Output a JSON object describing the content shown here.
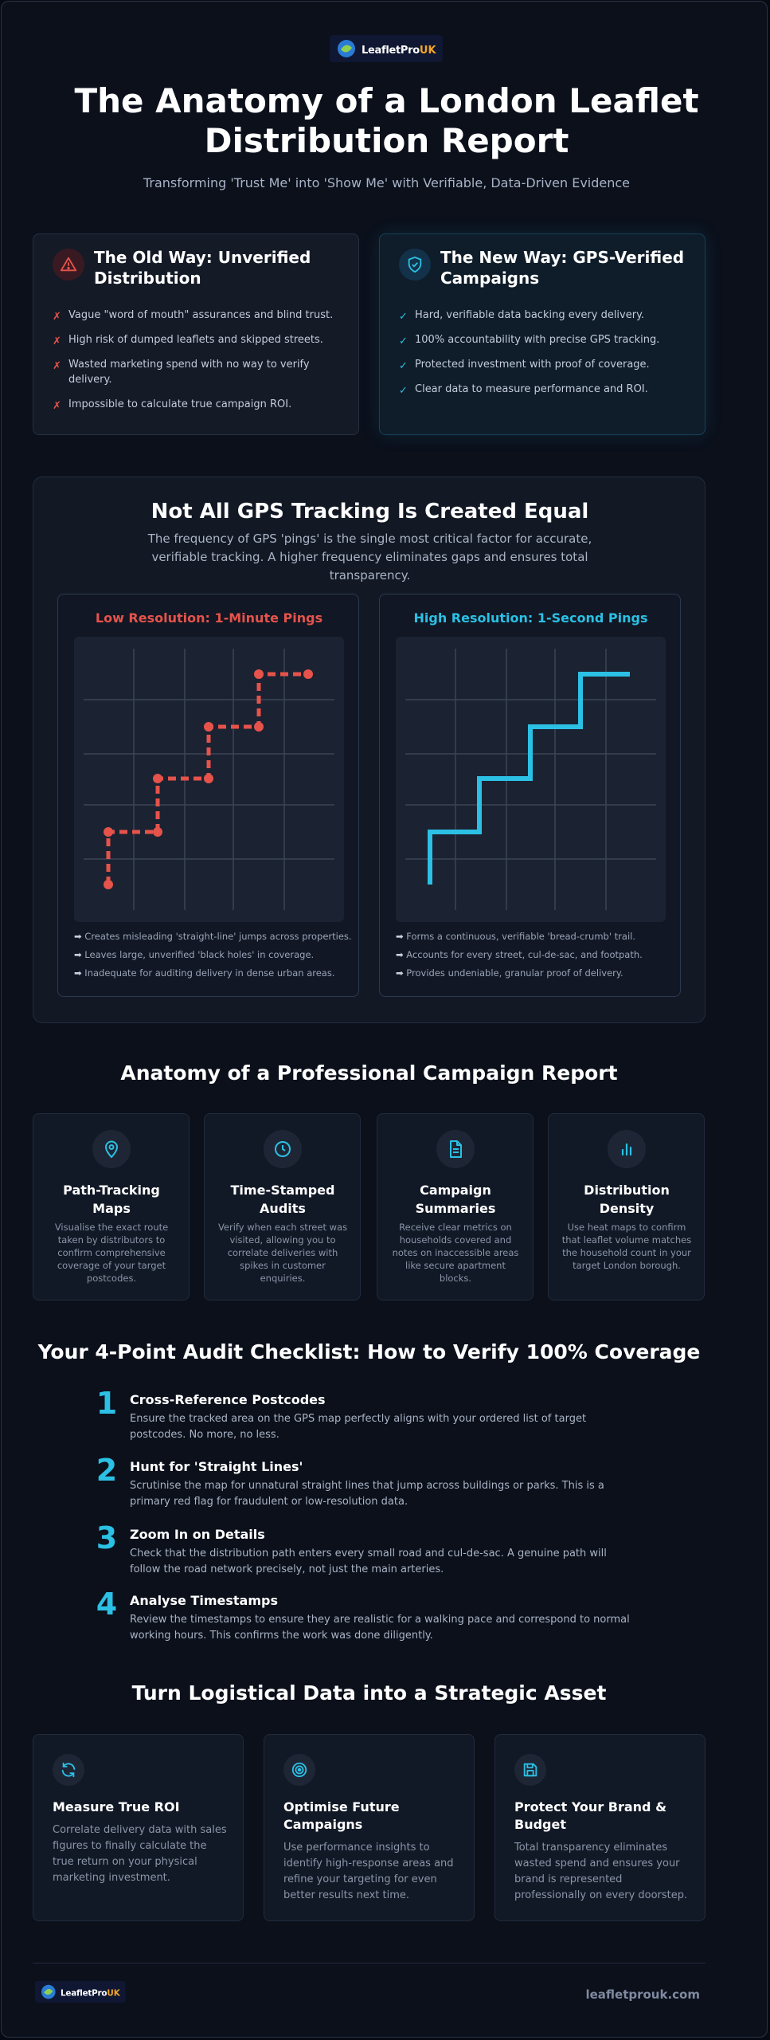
{
  "header": {
    "brand": "LeafletPro",
    "brand_suffix": "UK",
    "title": "The Anatomy of a London Leaflet Distribution Report",
    "subtitle": "Transforming 'Trust Me' into 'Show Me' with Verifiable, Data-Driven Evidence"
  },
  "comparison": {
    "old": {
      "title": "The Old Way: Unverified Distribution",
      "items": [
        "Vague \"word of mouth\" assurances and blind trust.",
        "High risk of dumped leaflets and skipped streets.",
        "Wasted marketing spend with no way to verify delivery.",
        "Impossible to calculate true campaign ROI."
      ]
    },
    "new": {
      "title": "The New Way: GPS-Verified Campaigns",
      "items": [
        "Hard, verifiable data backing every delivery.",
        "100% accountability with precise GPS tracking.",
        "Protected investment with proof of coverage.",
        "Clear data to measure performance and ROI."
      ]
    }
  },
  "gps": {
    "title": "Not All GPS Tracking Is Created Equal",
    "description": "The frequency of GPS 'pings' is the single most critical factor for accurate, verifiable tracking. A higher frequency eliminates gaps and ensures total transparency.",
    "low": {
      "title": "Low Resolution: 1-Minute Pings",
      "bullets": [
        "Creates misleading 'straight-line' jumps across properties.",
        "Leaves large, unverified 'black holes' in coverage.",
        "Inadequate for auditing delivery in dense urban areas."
      ]
    },
    "high": {
      "title": "High Resolution: 1-Second Pings",
      "bullets": [
        "Forms a continuous, verifiable 'bread-crumb' trail.",
        "Accounts for every street, cul-de-sac, and footpath.",
        "Provides undeniable, granular proof of delivery."
      ]
    }
  },
  "anatomy": {
    "title": "Anatomy of a Professional Campaign Report",
    "cards": [
      {
        "title": "Path-Tracking Maps",
        "text": "Visualise the exact route taken by distributors to confirm comprehensive coverage of your target postcodes."
      },
      {
        "title": "Time-Stamped Audits",
        "text": "Verify when each street was visited, allowing you to correlate deliveries with spikes in customer enquiries."
      },
      {
        "title": "Campaign Summaries",
        "text": "Receive clear metrics on households covered and notes on inaccessible areas like secure apartment blocks."
      },
      {
        "title": "Distribution Density",
        "text": "Use heat maps to confirm that leaflet volume matches the household count in your target London borough."
      }
    ]
  },
  "checklist": {
    "title": "Your 4-Point Audit Checklist: How to Verify 100% Coverage",
    "items": [
      {
        "number": 1,
        "title": "Cross-Reference Postcodes",
        "text": "Ensure the tracked area on the GPS map perfectly aligns with your ordered list of target postcodes. No more, no less."
      },
      {
        "number": 2,
        "title": "Hunt for 'Straight Lines'",
        "text": "Scrutinise the map for unnatural straight lines that jump across buildings or parks. This is a primary red flag for fraudulent or low-resolution data."
      },
      {
        "number": 3,
        "title": "Zoom In on Details",
        "text": "Check that the distribution path enters every small road and cul-de-sac. A genuine path will follow the road network precisely, not just the main arteries."
      },
      {
        "number": 4,
        "title": "Analyse Timestamps",
        "text": "Review the timestamps to ensure they are realistic for a walking pace and correspond to normal working hours. This confirms the work was done diligently."
      }
    ]
  },
  "strategic": {
    "title": "Turn Logistical Data into a Strategic Asset",
    "cards": [
      {
        "title": "Measure True ROI",
        "text": "Correlate delivery data with sales figures to finally calculate the true return on your physical marketing investment."
      },
      {
        "title": "Optimise Future Campaigns",
        "text": "Use performance insights to identify high-response areas and refine your targeting for even better results next time."
      },
      {
        "title": "Protect Your Brand & Budget",
        "text": "Total transparency eliminates wasted spend and ensures your brand is represented professionally on every doorstep."
      }
    ]
  },
  "footer": {
    "website": "leafletprouk.com"
  }
}
